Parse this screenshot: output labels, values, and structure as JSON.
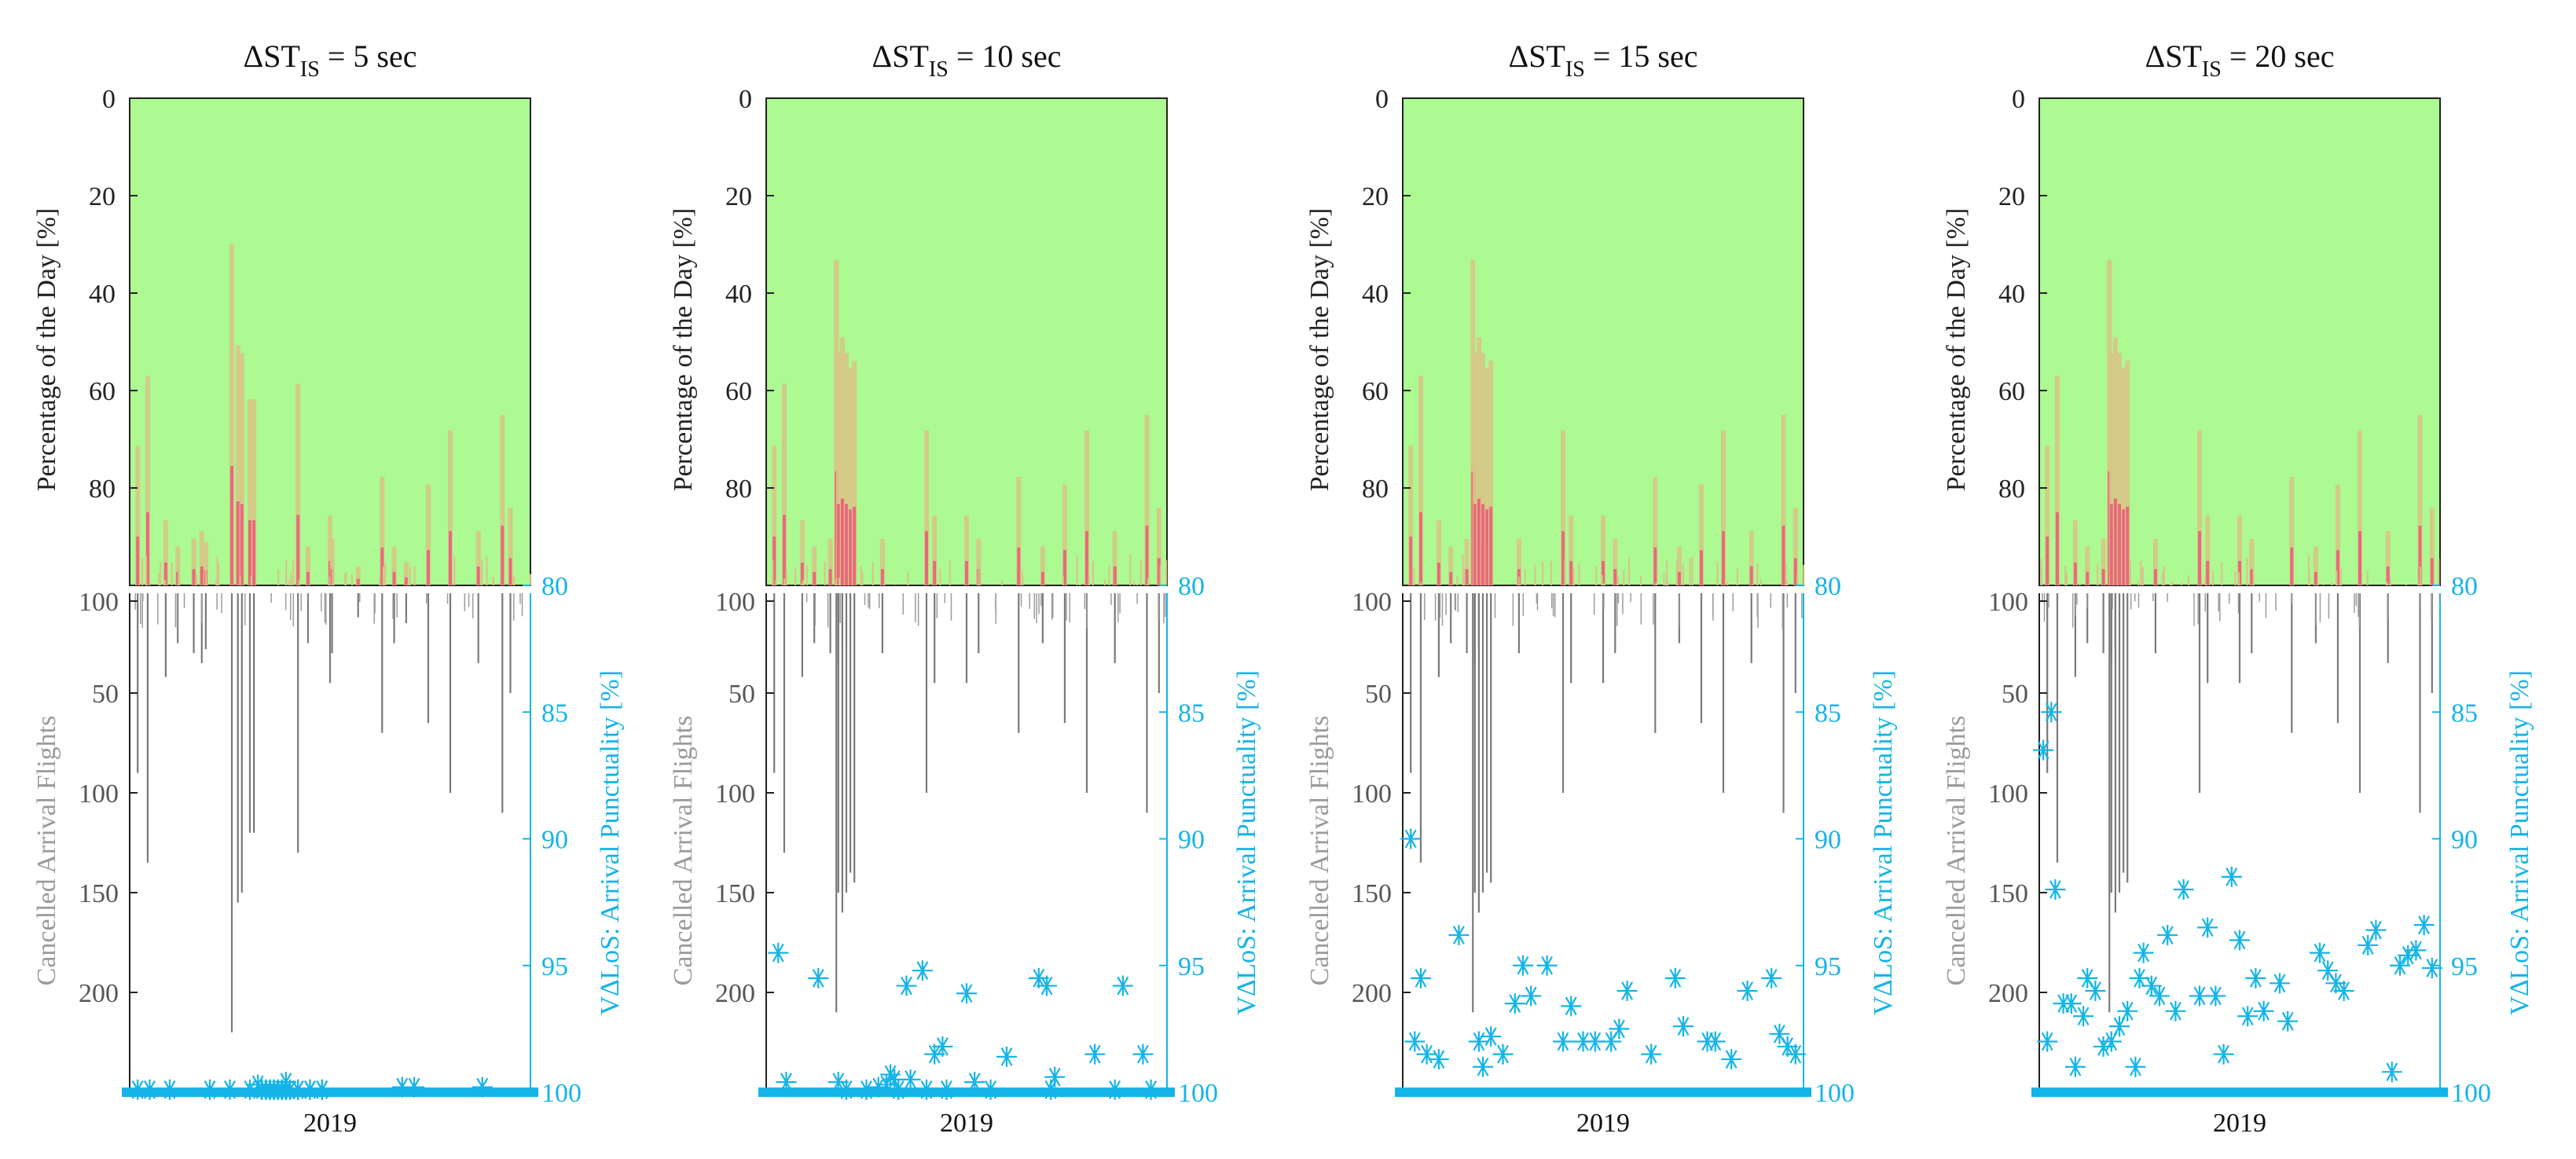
{
  "chart_data": [
    {
      "type": "bar",
      "title_prefix": "ΔST",
      "title_sub": "IS",
      "title_suffix": " = 5 sec",
      "top_ylabel": "Percentage of the Day [%]",
      "top_yticks": [
        0,
        20,
        40,
        60,
        80
      ],
      "left_ylabel": "Cancelled Arrival Flights",
      "left_yticks": [
        100,
        50,
        100,
        150,
        200
      ],
      "right_ylabel": "V∆LoS: Arrival Punctuality [%]",
      "right_yticks": [
        80,
        85,
        90,
        95,
        100
      ],
      "xlabel_tick": "2019",
      "cancel_spikes": [
        [
          0.02,
          90
        ],
        [
          0.045,
          135
        ],
        [
          0.09,
          42
        ],
        [
          0.12,
          25
        ],
        [
          0.16,
          30
        ],
        [
          0.18,
          35
        ],
        [
          0.19,
          28
        ],
        [
          0.255,
          220
        ],
        [
          0.27,
          155
        ],
        [
          0.28,
          150
        ],
        [
          0.3,
          120
        ],
        [
          0.31,
          120
        ],
        [
          0.42,
          130
        ],
        [
          0.445,
          25
        ],
        [
          0.5,
          45
        ],
        [
          0.505,
          30
        ],
        [
          0.57,
          12
        ],
        [
          0.63,
          70
        ],
        [
          0.66,
          25
        ],
        [
          0.69,
          15
        ],
        [
          0.745,
          65
        ],
        [
          0.8,
          100
        ],
        [
          0.87,
          35
        ],
        [
          0.93,
          110
        ],
        [
          0.95,
          50
        ]
      ],
      "punctuality_stars": [
        [
          0.33,
          99.9
        ],
        [
          0.34,
          99.9
        ],
        [
          0.35,
          99.9
        ],
        [
          0.36,
          99.9
        ],
        [
          0.37,
          99.9
        ],
        [
          0.38,
          99.9
        ],
        [
          0.39,
          99.9
        ],
        [
          0.4,
          99.9
        ],
        [
          0.42,
          99.9
        ],
        [
          0.45,
          99.9
        ],
        [
          0.48,
          99.9
        ],
        [
          0.33,
          99.9
        ],
        [
          0.34,
          99.9
        ],
        [
          0.35,
          99.9
        ],
        [
          0.36,
          99.9
        ],
        [
          0.37,
          99.9
        ],
        [
          0.38,
          99.9
        ],
        [
          0.39,
          99.9
        ],
        [
          0.4,
          99.9
        ],
        [
          0.42,
          99.9
        ],
        [
          0.45,
          99.9
        ],
        [
          0.48,
          99.9
        ],
        [
          0.02,
          99.9
        ],
        [
          0.05,
          99.9
        ],
        [
          0.1,
          99.9
        ],
        [
          0.2,
          99.9
        ],
        [
          0.25,
          99.9
        ],
        [
          0.3,
          99.9
        ],
        [
          0.32,
          99.7
        ],
        [
          0.39,
          99.6
        ],
        [
          0.68,
          99.8
        ],
        [
          0.71,
          99.8
        ],
        [
          0.88,
          99.8
        ]
      ]
    },
    {
      "type": "bar",
      "title_prefix": "ΔST",
      "title_sub": "IS",
      "title_suffix": " = 10 sec",
      "top_ylabel": "Percentage of the Day [%]",
      "top_yticks": [
        0,
        20,
        40,
        60,
        80
      ],
      "left_ylabel": "Cancelled Arrival Flights",
      "left_yticks": [
        100,
        50,
        100,
        150,
        200
      ],
      "right_ylabel": "V∆LoS: Arrival Punctuality [%]",
      "right_yticks": [
        80,
        85,
        90,
        95,
        100
      ],
      "xlabel_tick": "2019",
      "cancel_spikes": [
        [
          0.02,
          90
        ],
        [
          0.045,
          130
        ],
        [
          0.09,
          42
        ],
        [
          0.12,
          25
        ],
        [
          0.16,
          30
        ],
        [
          0.18,
          35
        ],
        [
          0.19,
          28
        ],
        [
          0.175,
          210
        ],
        [
          0.18,
          150
        ],
        [
          0.19,
          160
        ],
        [
          0.2,
          150
        ],
        [
          0.21,
          140
        ],
        [
          0.22,
          145
        ],
        [
          0.29,
          30
        ],
        [
          0.4,
          100
        ],
        [
          0.42,
          45
        ],
        [
          0.5,
          45
        ],
        [
          0.53,
          30
        ],
        [
          0.63,
          70
        ],
        [
          0.69,
          25
        ],
        [
          0.745,
          65
        ],
        [
          0.8,
          100
        ],
        [
          0.87,
          35
        ],
        [
          0.95,
          110
        ],
        [
          0.98,
          50
        ]
      ],
      "punctuality_stars": [
        [
          0.03,
          94.5
        ],
        [
          0.05,
          99.6
        ],
        [
          0.13,
          95.5
        ],
        [
          0.18,
          99.6
        ],
        [
          0.2,
          99.9
        ],
        [
          0.25,
          99.9
        ],
        [
          0.28,
          99.8
        ],
        [
          0.3,
          99.7
        ],
        [
          0.31,
          99.3
        ],
        [
          0.32,
          99.5
        ],
        [
          0.33,
          99.9
        ],
        [
          0.35,
          95.8
        ],
        [
          0.36,
          99.5
        ],
        [
          0.39,
          95.2
        ],
        [
          0.4,
          99.9
        ],
        [
          0.42,
          98.5
        ],
        [
          0.44,
          98.2
        ],
        [
          0.45,
          99.9
        ],
        [
          0.5,
          96.1
        ],
        [
          0.52,
          99.6
        ],
        [
          0.56,
          99.9
        ],
        [
          0.6,
          98.6
        ],
        [
          0.68,
          95.5
        ],
        [
          0.7,
          95.8
        ],
        [
          0.71,
          99.9
        ],
        [
          0.72,
          99.4
        ],
        [
          0.82,
          98.5
        ],
        [
          0.87,
          99.9
        ],
        [
          0.89,
          95.8
        ],
        [
          0.94,
          98.5
        ],
        [
          0.96,
          99.9
        ]
      ]
    },
    {
      "type": "bar",
      "title_prefix": "ΔST",
      "title_sub": "IS",
      "title_suffix": " = 15 sec",
      "top_ylabel": "Percentage of the Day [%]",
      "top_yticks": [
        0,
        20,
        40,
        60,
        80
      ],
      "left_ylabel": "Cancelled Arrival Flights",
      "left_yticks": [
        100,
        50,
        100,
        150,
        200
      ],
      "right_ylabel": "V∆LoS: Arrival Punctuality [%]",
      "right_yticks": [
        80,
        85,
        90,
        95,
        100
      ],
      "xlabel_tick": "2019",
      "cancel_spikes": [
        [
          0.02,
          90
        ],
        [
          0.045,
          135
        ],
        [
          0.09,
          42
        ],
        [
          0.12,
          25
        ],
        [
          0.16,
          30
        ],
        [
          0.18,
          35
        ],
        [
          0.19,
          28
        ],
        [
          0.175,
          210
        ],
        [
          0.18,
          150
        ],
        [
          0.19,
          160
        ],
        [
          0.2,
          150
        ],
        [
          0.21,
          140
        ],
        [
          0.22,
          145
        ],
        [
          0.29,
          30
        ],
        [
          0.4,
          100
        ],
        [
          0.42,
          45
        ],
        [
          0.5,
          45
        ],
        [
          0.53,
          30
        ],
        [
          0.63,
          70
        ],
        [
          0.69,
          25
        ],
        [
          0.745,
          65
        ],
        [
          0.8,
          100
        ],
        [
          0.87,
          35
        ],
        [
          0.95,
          110
        ],
        [
          0.98,
          50
        ]
      ],
      "punctuality_stars": [
        [
          0.02,
          90
        ],
        [
          0.03,
          98
        ],
        [
          0.045,
          95.5
        ],
        [
          0.06,
          98.5
        ],
        [
          0.09,
          98.7
        ],
        [
          0.14,
          93.8
        ],
        [
          0.19,
          98
        ],
        [
          0.2,
          99
        ],
        [
          0.22,
          97.8
        ],
        [
          0.25,
          98.5
        ],
        [
          0.28,
          96.5
        ],
        [
          0.3,
          95
        ],
        [
          0.32,
          96.2
        ],
        [
          0.36,
          95
        ],
        [
          0.4,
          98
        ],
        [
          0.42,
          96.6
        ],
        [
          0.45,
          98
        ],
        [
          0.48,
          98
        ],
        [
          0.52,
          98
        ],
        [
          0.54,
          97.5
        ],
        [
          0.56,
          96
        ],
        [
          0.62,
          98.5
        ],
        [
          0.68,
          95.5
        ],
        [
          0.7,
          97.4
        ],
        [
          0.76,
          98
        ],
        [
          0.78,
          98
        ],
        [
          0.82,
          98.7
        ],
        [
          0.86,
          96
        ],
        [
          0.92,
          95.5
        ],
        [
          0.94,
          97.7
        ],
        [
          0.96,
          98.2
        ],
        [
          0.98,
          98.5
        ]
      ]
    },
    {
      "type": "bar",
      "title_prefix": "ΔST",
      "title_sub": "IS",
      "title_suffix": " = 20 sec",
      "top_ylabel": "Percentage of the Day [%]",
      "top_yticks": [
        0,
        20,
        40,
        60,
        80
      ],
      "left_ylabel": "Cancelled Arrival Flights",
      "left_yticks": [
        100,
        50,
        100,
        150,
        200
      ],
      "right_ylabel": "V∆LoS: Arrival Punctuality [%]",
      "right_yticks": [
        80,
        85,
        90,
        95,
        100
      ],
      "xlabel_tick": "2019",
      "cancel_spikes": [
        [
          0.02,
          90
        ],
        [
          0.045,
          135
        ],
        [
          0.09,
          42
        ],
        [
          0.12,
          25
        ],
        [
          0.16,
          30
        ],
        [
          0.18,
          35
        ],
        [
          0.19,
          28
        ],
        [
          0.175,
          210
        ],
        [
          0.18,
          150
        ],
        [
          0.19,
          160
        ],
        [
          0.2,
          150
        ],
        [
          0.21,
          140
        ],
        [
          0.22,
          145
        ],
        [
          0.29,
          30
        ],
        [
          0.4,
          100
        ],
        [
          0.42,
          45
        ],
        [
          0.5,
          45
        ],
        [
          0.53,
          30
        ],
        [
          0.63,
          70
        ],
        [
          0.69,
          25
        ],
        [
          0.745,
          65
        ],
        [
          0.8,
          100
        ],
        [
          0.87,
          35
        ],
        [
          0.95,
          110
        ],
        [
          0.98,
          50
        ]
      ],
      "punctuality_stars": [
        [
          0.01,
          86.5
        ],
        [
          0.02,
          98
        ],
        [
          0.03,
          85
        ],
        [
          0.04,
          92
        ],
        [
          0.06,
          96.5
        ],
        [
          0.08,
          96.5
        ],
        [
          0.09,
          99
        ],
        [
          0.11,
          97
        ],
        [
          0.12,
          95.5
        ],
        [
          0.14,
          96
        ],
        [
          0.16,
          98.2
        ],
        [
          0.18,
          98
        ],
        [
          0.2,
          97.4
        ],
        [
          0.22,
          96.8
        ],
        [
          0.24,
          99
        ],
        [
          0.25,
          95.5
        ],
        [
          0.26,
          94.5
        ],
        [
          0.28,
          95.8
        ],
        [
          0.3,
          96.2
        ],
        [
          0.32,
          93.8
        ],
        [
          0.34,
          96.8
        ],
        [
          0.36,
          92
        ],
        [
          0.4,
          96.2
        ],
        [
          0.42,
          93.5
        ],
        [
          0.44,
          96.2
        ],
        [
          0.46,
          98.5
        ],
        [
          0.48,
          91.5
        ],
        [
          0.5,
          94
        ],
        [
          0.52,
          97
        ],
        [
          0.54,
          95.5
        ],
        [
          0.56,
          96.8
        ],
        [
          0.6,
          95.7
        ],
        [
          0.62,
          97.2
        ],
        [
          0.7,
          94.5
        ],
        [
          0.72,
          95.2
        ],
        [
          0.74,
          95.7
        ],
        [
          0.76,
          96
        ],
        [
          0.82,
          94.2
        ],
        [
          0.84,
          93.6
        ],
        [
          0.88,
          99.2
        ],
        [
          0.9,
          95
        ],
        [
          0.92,
          94.6
        ],
        [
          0.94,
          94.4
        ],
        [
          0.96,
          93.4
        ],
        [
          0.98,
          95.1
        ]
      ]
    }
  ]
}
